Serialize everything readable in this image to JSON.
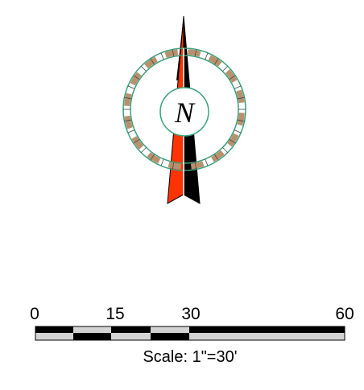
{
  "north_arrow": {
    "letter": "N",
    "icon": "north-arrow-icon",
    "colors": {
      "ring": "#3aa17e",
      "ring_segment": "#b8906c",
      "arrow_left": "#ff3300",
      "arrow_right": "#000000",
      "center_line": "#ffffff"
    }
  },
  "scale_bar": {
    "ticks": [
      "0",
      "15",
      "30",
      "60"
    ],
    "caption": "Scale: 1\"=30'",
    "colors": {
      "dark": "#000000",
      "light": "#d3d3d3"
    }
  }
}
